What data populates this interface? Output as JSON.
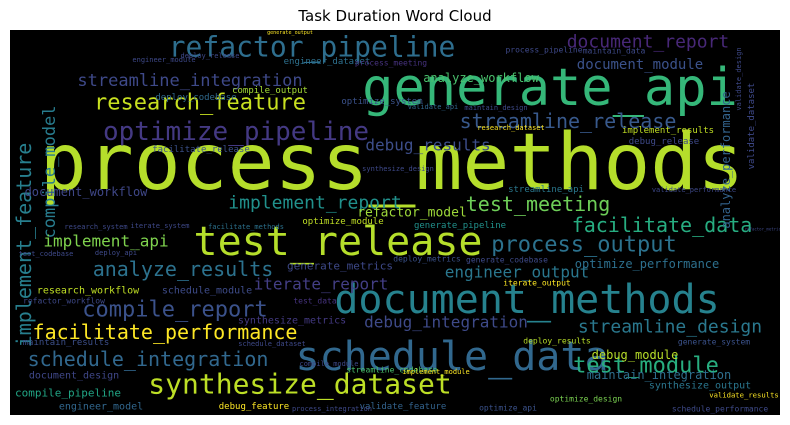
{
  "chart_data": {
    "type": "wordcloud",
    "title": "Task Duration Word Cloud",
    "background": "#000000",
    "colormap": "viridis",
    "words": [
      {
        "text": "process_methods",
        "weight": 1.0,
        "color": "#b5de2b"
      },
      {
        "text": "generate_api",
        "weight": 0.62,
        "color": "#35b779"
      },
      {
        "text": "document_methods",
        "weight": 0.5,
        "color": "#26828e"
      },
      {
        "text": "schedule_data",
        "weight": 0.49,
        "color": "#31688e"
      },
      {
        "text": "refactor_pipeline",
        "weight": 0.45,
        "color": "#2e6e8e"
      },
      {
        "text": "test_release",
        "weight": 0.44,
        "color": "#b5de2b"
      },
      {
        "text": "synthesize_dataset",
        "weight": 0.34,
        "color": "#bddf26"
      },
      {
        "text": "optimize_pipeline",
        "weight": 0.33,
        "color": "#443983"
      },
      {
        "text": "research_feature",
        "weight": 0.27,
        "color": "#c8e020"
      },
      {
        "text": "process_output",
        "weight": 0.27,
        "color": "#2c728e"
      },
      {
        "text": "compile_report",
        "weight": 0.26,
        "color": "#3b528b"
      },
      {
        "text": "document_report",
        "weight": 0.24,
        "color": "#482878"
      },
      {
        "text": "implement_report",
        "weight": 0.24,
        "color": "#21918c"
      },
      {
        "text": "test_meeting",
        "weight": 0.24,
        "color": "#6ece58"
      },
      {
        "text": "streamline_release",
        "weight": 0.23,
        "color": "#38598c"
      },
      {
        "text": "facilitate_data",
        "weight": 0.22,
        "color": "#27ad81"
      },
      {
        "text": "facilitate_performance",
        "weight": 0.22,
        "color": "#fde725"
      },
      {
        "text": "test_module",
        "weight": 0.22,
        "color": "#28ae80"
      },
      {
        "text": "schedule_integration",
        "weight": 0.21,
        "color": "#31688e"
      },
      {
        "text": "analyze_results",
        "weight": 0.21,
        "color": "#2c728e"
      },
      {
        "text": "streamline_integration",
        "weight": 0.19,
        "color": "#3e4989"
      },
      {
        "text": "implement_feature",
        "weight": 0.19,
        "color": "#277f8e"
      },
      {
        "text": "compile_model",
        "weight": 0.19,
        "color": "#287c8e"
      },
      {
        "text": "streamline_design",
        "weight": 0.18,
        "color": "#2a788e"
      },
      {
        "text": "debug_integration",
        "weight": 0.18,
        "color": "#3e4a89"
      },
      {
        "text": "debug_results",
        "weight": 0.17,
        "color": "#3d4e8a"
      },
      {
        "text": "implement_api",
        "weight": 0.16,
        "color": "#7fd34e"
      },
      {
        "text": "engineer_output",
        "weight": 0.15,
        "color": "#2a778e"
      },
      {
        "text": "iterate_report",
        "weight": 0.15,
        "color": "#433e85"
      },
      {
        "text": "document_module",
        "weight": 0.13,
        "color": "#3b528b"
      },
      {
        "text": "refactor_model",
        "weight": 0.12,
        "color": "#9fda3a"
      },
      {
        "text": "analyze_workflow",
        "weight": 0.11,
        "color": "#4ac16d"
      },
      {
        "text": "document_workflow",
        "weight": 0.11,
        "color": "#3f4788"
      },
      {
        "text": "optimize_performance",
        "weight": 0.1,
        "color": "#2d708e"
      },
      {
        "text": "generate_metrics",
        "weight": 0.1,
        "color": "#3e4989"
      },
      {
        "text": "debug_module",
        "weight": 0.1,
        "color": "#b8de29"
      },
      {
        "text": "maintain_integration",
        "weight": 0.1,
        "color": "#2e6f8e"
      },
      {
        "text": "analyze_performance",
        "weight": 0.1,
        "color": "#33638d"
      },
      {
        "text": "research_workflow",
        "weight": 0.09,
        "color": "#c0df25"
      },
      {
        "text": "compile_pipeline",
        "weight": 0.09,
        "color": "#21a585"
      },
      {
        "text": "schedule_module",
        "weight": 0.08,
        "color": "#3e4c8a"
      },
      {
        "text": "synthesize_metrics",
        "weight": 0.08,
        "color": "#443a83"
      },
      {
        "text": "document_design",
        "weight": 0.08,
        "color": "#3f4788"
      },
      {
        "text": "maintain_results",
        "weight": 0.08,
        "color": "#3c4f8a"
      },
      {
        "text": "synthesize_output",
        "weight": 0.07,
        "color": "#2a768e"
      },
      {
        "text": "engineer_model",
        "weight": 0.07,
        "color": "#31678e"
      },
      {
        "text": "facilitate_release",
        "weight": 0.07,
        "color": "#3b518b"
      },
      {
        "text": "debug_release",
        "weight": 0.07,
        "color": "#3e4989"
      },
      {
        "text": "implement_results",
        "weight": 0.07,
        "color": "#c2df23"
      },
      {
        "text": "compile_output",
        "weight": 0.06,
        "color": "#a5db36"
      },
      {
        "text": "engineer_dataset",
        "weight": 0.06,
        "color": "#2d708e"
      },
      {
        "text": "deploy_codebase",
        "weight": 0.06,
        "color": "#306a8e"
      },
      {
        "text": "optimize_system",
        "weight": 0.06,
        "color": "#3b528b"
      },
      {
        "text": "process_meeting",
        "weight": 0.06,
        "color": "#46327e"
      },
      {
        "text": "optimize_module",
        "weight": 0.06,
        "color": "#c0df25"
      },
      {
        "text": "generate_pipeline",
        "weight": 0.06,
        "color": "#21918c"
      },
      {
        "text": "streamline_api",
        "weight": 0.06,
        "color": "#2a788e"
      },
      {
        "text": "generate_codebase",
        "weight": 0.06,
        "color": "#3e4a89"
      },
      {
        "text": "deploy_metrics",
        "weight": 0.06,
        "color": "#3b528b"
      },
      {
        "text": "iterate_output",
        "weight": 0.06,
        "color": "#fde725"
      },
      {
        "text": "test_data",
        "weight": 0.06,
        "color": "#46337f"
      },
      {
        "text": "validate_feature",
        "weight": 0.06,
        "color": "#33638d"
      },
      {
        "text": "debug_feature",
        "weight": 0.06,
        "color": "#fde725"
      },
      {
        "text": "optimize_design",
        "weight": 0.05,
        "color": "#7ad151"
      },
      {
        "text": "schedule_performance",
        "weight": 0.05,
        "color": "#3e4a89"
      },
      {
        "text": "validate_results",
        "weight": 0.05,
        "color": "#fde725"
      },
      {
        "text": "streamline_codebase",
        "weight": 0.05,
        "color": "#4ac16d"
      },
      {
        "text": "deploy_results",
        "weight": 0.05,
        "color": "#b8de29"
      },
      {
        "text": "generate_system",
        "weight": 0.05,
        "color": "#3b528b"
      },
      {
        "text": "maintain_data",
        "weight": 0.05,
        "color": "#3e4a89"
      },
      {
        "text": "process_pipeline",
        "weight": 0.05,
        "color": "#3e4989"
      },
      {
        "text": "facilitate_methods",
        "weight": 0.04,
        "color": "#2c728e"
      },
      {
        "text": "iterate_system",
        "weight": 0.04,
        "color": "#3e4989"
      },
      {
        "text": "research_system",
        "weight": 0.04,
        "color": "#3e4989"
      },
      {
        "text": "validate_api",
        "weight": 0.04,
        "color": "#31688e"
      },
      {
        "text": "validate_dataset",
        "weight": 0.04,
        "color": "#3e4989"
      },
      {
        "text": "schedule_dataset",
        "weight": 0.04,
        "color": "#3e4989"
      },
      {
        "text": "deploy_api",
        "weight": 0.04,
        "color": "#3e4989"
      },
      {
        "text": "optimize_api",
        "weight": 0.04,
        "color": "#3b528b"
      },
      {
        "text": "process_integration",
        "weight": 0.04,
        "color": "#3e4989"
      },
      {
        "text": "implement_module",
        "weight": 0.04,
        "color": "#fde725"
      },
      {
        "text": "synthesize_design",
        "weight": 0.04,
        "color": "#3e4989"
      },
      {
        "text": "engineer_module",
        "weight": 0.04,
        "color": "#3e4989"
      },
      {
        "text": "deploy_release",
        "weight": 0.04,
        "color": "#3e4989"
      },
      {
        "text": "generate_output",
        "weight": 0.04,
        "color": "#fde725"
      },
      {
        "text": "maintain_design",
        "weight": 0.04,
        "color": "#3e4989"
      },
      {
        "text": "test_codebase",
        "weight": 0.04,
        "color": "#3e4989"
      },
      {
        "text": "refactor_workflow",
        "weight": 0.04,
        "color": "#3e4989"
      },
      {
        "text": "validate_design",
        "weight": 0.04,
        "color": "#3e4989"
      },
      {
        "text": "research_dataset",
        "weight": 0.04,
        "color": "#fde725"
      },
      {
        "text": "compile_module",
        "weight": 0.04,
        "color": "#3e4989"
      },
      {
        "text": "validate_performance",
        "weight": 0.04,
        "color": "#3e4989"
      },
      {
        "text": "refactor_metrics",
        "weight": 0.04,
        "color": "#3e4989"
      }
    ]
  }
}
